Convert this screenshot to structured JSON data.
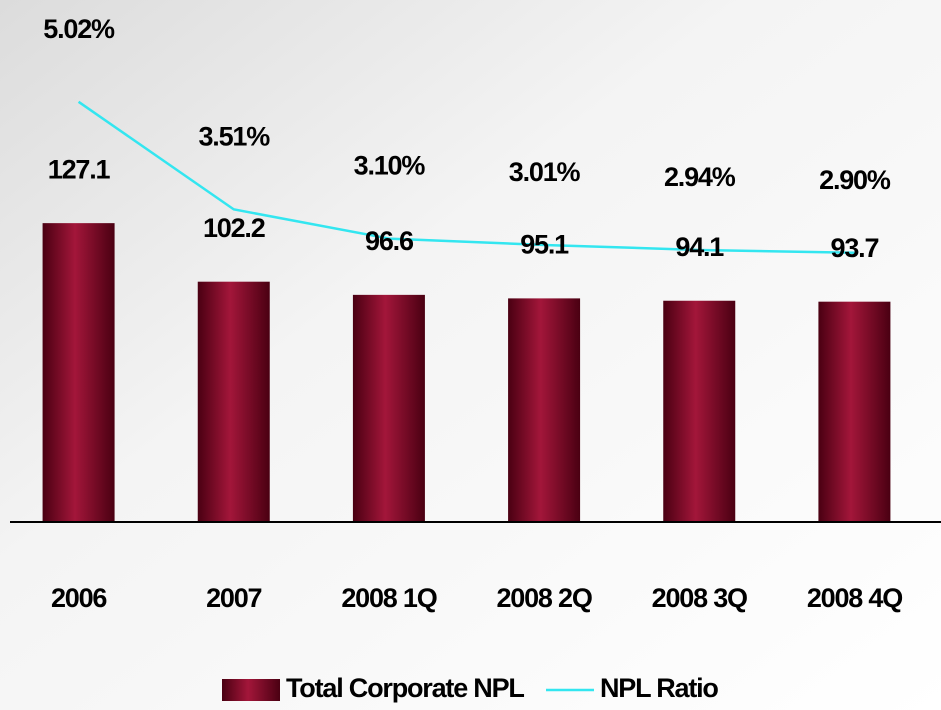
{
  "chart_data": {
    "type": "bar+line",
    "categories": [
      "2006",
      "2007",
      "2008 1Q",
      "2008 2Q",
      "2008 3Q",
      "2008 4Q"
    ],
    "series": [
      {
        "name": "Total Corporate NPL",
        "type": "bar",
        "color": "#8b0a2a",
        "values": [
          127.1,
          102.2,
          96.6,
          95.1,
          94.1,
          93.7
        ]
      },
      {
        "name": "NPL Ratio",
        "type": "line",
        "axis": "y2",
        "color": "#33e6f0",
        "values": [
          5.02,
          3.51,
          3.1,
          3.01,
          2.94,
          2.9
        ],
        "value_labels": [
          "5.02%",
          "3.51%",
          "3.10%",
          "3.01%",
          "2.94%",
          "2.90%"
        ]
      }
    ],
    "ylim": [
      0,
      222
    ],
    "y2lim": [
      -0.88,
      6.45
    ],
    "legend": "bottom"
  }
}
